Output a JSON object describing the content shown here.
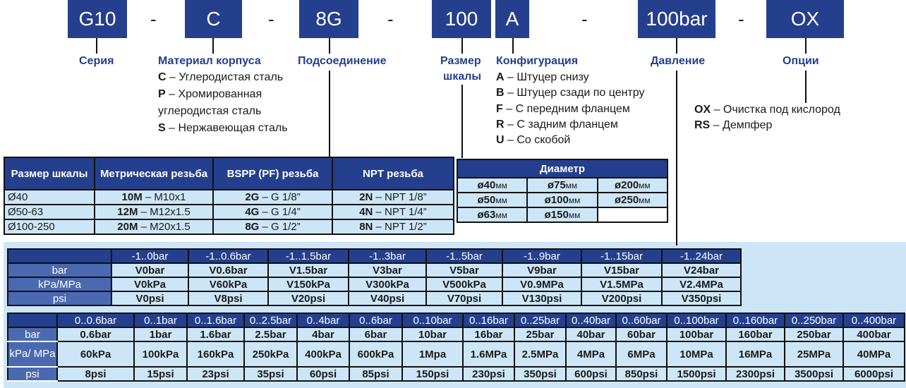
{
  "code": {
    "segments": [
      "G10",
      "C",
      "8G",
      "100",
      "A",
      "100bar",
      "OX"
    ],
    "separator": "-"
  },
  "labels": {
    "series": "Серия",
    "material": "Материал корпуса",
    "connection": "Подсоединение",
    "size_line1": "Размер",
    "size_line2": "шкалы",
    "configuration": "Конфигурация",
    "pressure": "Давление",
    "options": "Опции"
  },
  "material_items": [
    {
      "code": "C",
      "text": " – Углеродистая сталь"
    },
    {
      "code": "P",
      "text": " – Хромированная"
    },
    {
      "code": "",
      "text": "углеродистая сталь"
    },
    {
      "code": "S",
      "text": " – Нержавеющая сталь"
    }
  ],
  "configuration_items": [
    {
      "code": "A",
      "text": " – Штуцер снизу"
    },
    {
      "code": "B",
      "text": " – Штуцер сзади по центру"
    },
    {
      "code": "F",
      "text": " – С передним фланцем"
    },
    {
      "code": "R",
      "text": " – С задним фланцем"
    },
    {
      "code": "U",
      "text": " – Со скобой"
    }
  ],
  "option_items": [
    {
      "code": "OX",
      "text": " – Очистка под кислород"
    },
    {
      "code": "RS",
      "text": " – Демпфер"
    }
  ],
  "connection_table": {
    "headers": [
      "Размер шкалы",
      "Метрическая резьба",
      "BSPP (PF) резьба",
      "NPT резьба"
    ],
    "rows": [
      [
        {
          "b": "",
          "t": "Ø40"
        },
        {
          "b": "10M",
          "t": " – M10x1"
        },
        {
          "b": "2G",
          "t": " – G 1/8”"
        },
        {
          "b": "2N",
          "t": " – NPT 1/8”"
        }
      ],
      [
        {
          "b": "",
          "t": "Ø50-63"
        },
        {
          "b": "12M",
          "t": " – M12x1.5"
        },
        {
          "b": "4G",
          "t": " – G 1/4”"
        },
        {
          "b": "4N",
          "t": " – NPT 1/4”"
        }
      ],
      [
        {
          "b": "",
          "t": "Ø100-250"
        },
        {
          "b": "20M",
          "t": " – M20x1.5"
        },
        {
          "b": "8G",
          "t": " – G 1/2”"
        },
        {
          "b": "8N",
          "t": " – NPT 1/2”"
        }
      ]
    ]
  },
  "diameter_table": {
    "header": "Диаметр",
    "unit": "мм",
    "rows": [
      [
        "ø40",
        "ø75",
        "ø200"
      ],
      [
        "ø50",
        "ø100",
        "ø250"
      ],
      [
        "ø63",
        "ø150",
        ""
      ]
    ]
  },
  "vacuum_table": {
    "headers": [
      "-1..0bar",
      "-1..0.6bar",
      "-1..1.5bar",
      "-1..3bar",
      "-1..5bar",
      "-1..9bar",
      "-1..15bar",
      "-1..24bar"
    ],
    "rows": [
      {
        "label": "bar",
        "values": [
          "V0bar",
          "V0.6bar",
          "V1.5bar",
          "V3bar",
          "V5bar",
          "V9bar",
          "V15bar",
          "V24bar"
        ]
      },
      {
        "label": "kPa/MPa",
        "values": [
          "V0kPa",
          "V60kPa",
          "V150kPa",
          "V300kPa",
          "V500kPa",
          "V0.9MPa",
          "V1.5MPa",
          "V2.4MPa"
        ]
      },
      {
        "label": "psi",
        "values": [
          "V0psi",
          "V8psi",
          "V20psi",
          "V40psi",
          "V70psi",
          "V130psi",
          "V200psi",
          "V350psi"
        ]
      }
    ]
  },
  "pressure_table": {
    "headers": [
      "0..0.6bar",
      "0..1bar",
      "0..1.6bar",
      "0..2.5bar",
      "0..4bar",
      "0..6bar",
      "0..10bar",
      "0..16bar",
      "0..25bar",
      "0..40bar",
      "0..60bar",
      "0..100bar",
      "0..160bar",
      "0..250bar",
      "0..400bar"
    ],
    "rows": [
      {
        "label": "bar",
        "values": [
          "0.6bar",
          "1bar",
          "1.6bar",
          "2.5bar",
          "4bar",
          "6bar",
          "10bar",
          "16bar",
          "25bar",
          "40bar",
          "60bar",
          "100bar",
          "160bar",
          "250bar",
          "400bar"
        ]
      },
      {
        "label": "kPa/ MPa",
        "values": [
          "60kPa",
          "100kPa",
          "160kPa",
          "250kPa",
          "400kPa",
          "600kPa",
          "1Mpa",
          "1.6MPa",
          "2.5MPa",
          "4MPa",
          "6MPa",
          "10MPa",
          "16MPa",
          "25MPa",
          "40MPa"
        ]
      },
      {
        "label": "psi",
        "values": [
          "8psi",
          "15psi",
          "23psi",
          "35psi",
          "60psi",
          "85psi",
          "150psi",
          "230psi",
          "350psi",
          "600psi",
          "850psi",
          "1500psi",
          "2300psi",
          "3500psi",
          "6000psi"
        ]
      }
    ]
  },
  "colors": {
    "dark_blue": "#243f8d",
    "light_blue": "#cde6f7",
    "row_header_blue": "#4a69b0"
  }
}
